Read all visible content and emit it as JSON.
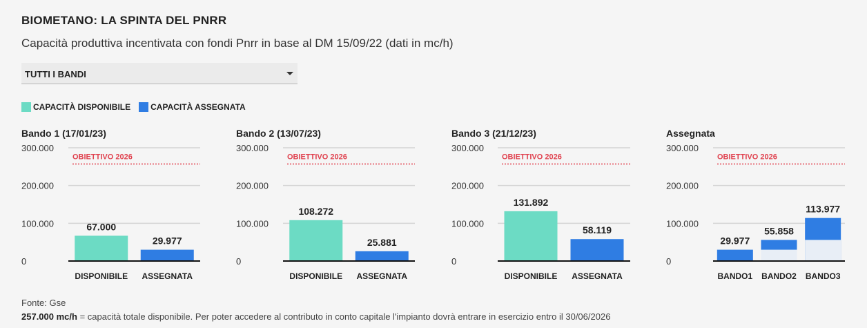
{
  "title": "BIOMETANO: LA SPINTA DEL PNRR",
  "subtitle": "Capacità produttiva incentivata con fondi Pnrr in base al DM 15/09/22 (dati in mc/h)",
  "dropdown": {
    "selected": "TUTTI I BANDI"
  },
  "legend": [
    {
      "label": "CAPACITÀ DISPONIBILE",
      "color": "#6cdbc4"
    },
    {
      "label": "CAPACITÀ ASSEGNATA",
      "color": "#2f7de3"
    }
  ],
  "colors": {
    "disponibile": "#6cdbc4",
    "assegnata": "#2f7de3",
    "bando1_share": "#e8eef6",
    "objective": "#e0424f",
    "grid": "#d4d4d4"
  },
  "objective_label": "OBIETTIVO 2026",
  "chart_data": [
    {
      "type": "bar",
      "title": "Bando 1 (17/01/23)",
      "categories": [
        "DISPONIBILE",
        "ASSEGNATA"
      ],
      "values": [
        67000,
        29977
      ],
      "value_labels": [
        "67.000",
        "29.977"
      ],
      "ylim": [
        0,
        300000
      ],
      "yticks": [
        "0",
        "100.000",
        "200.000",
        "300.000"
      ],
      "yticks_values": [
        0,
        100000,
        200000,
        300000
      ],
      "objective": 257000
    },
    {
      "type": "bar",
      "title": "Bando 2 (13/07/23)",
      "categories": [
        "DISPONIBILE",
        "ASSEGNATA"
      ],
      "values": [
        108272,
        25881
      ],
      "value_labels": [
        "108.272",
        "25.881"
      ],
      "ylim": [
        0,
        300000
      ],
      "yticks": [
        "0",
        "100.000",
        "200.000",
        "300.000"
      ],
      "yticks_values": [
        0,
        100000,
        200000,
        300000
      ],
      "objective": 257000
    },
    {
      "type": "bar",
      "title": "Bando 3 (21/12/23)",
      "categories": [
        "DISPONIBILE",
        "ASSEGNATA"
      ],
      "values": [
        131892,
        58119
      ],
      "value_labels": [
        "131.892",
        "58.119"
      ],
      "ylim": [
        0,
        300000
      ],
      "yticks": [
        "0",
        "100.000",
        "200.000",
        "300.000"
      ],
      "yticks_values": [
        0,
        100000,
        200000,
        300000
      ],
      "objective": 257000
    },
    {
      "type": "bar",
      "stacked": true,
      "title": "Assegnata",
      "categories": [
        "BANDO1",
        "BANDO2",
        "BANDO3"
      ],
      "values": [
        29977,
        55858,
        113977
      ],
      "value_labels": [
        "29.977",
        "55.858",
        "113.977"
      ],
      "previous_cumulative": [
        0,
        29977,
        55858
      ],
      "ylim": [
        0,
        300000
      ],
      "yticks": [
        "0",
        "100.000",
        "200.000",
        "300.000"
      ],
      "yticks_values": [
        0,
        100000,
        200000,
        300000
      ],
      "objective": 257000
    }
  ],
  "footer": {
    "source": "Fonte: Gse",
    "note_bold": "257.000 mc/h",
    "note_rest": " = capacità totale disponibile. Per poter accedere al contributo in conto capitale l'impianto dovrà entrare in esercizio entro il 30/06/2026"
  }
}
